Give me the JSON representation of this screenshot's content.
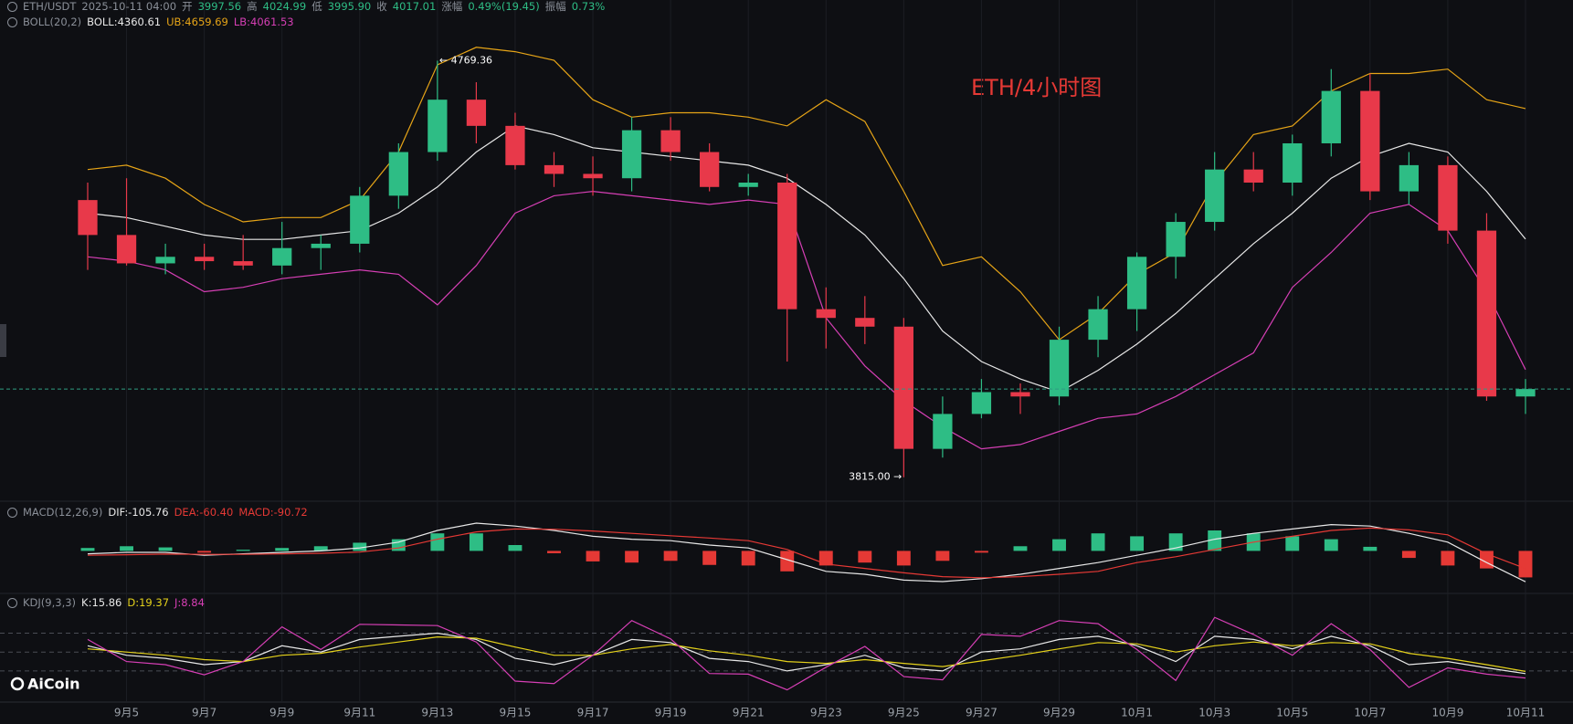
{
  "header": {
    "pair": "ETH/USDT",
    "time": "2025-10-11 04:00",
    "items": [
      {
        "label": "开",
        "value": "3997.56"
      },
      {
        "label": "高",
        "value": "4024.99"
      },
      {
        "label": "低",
        "value": "3995.90"
      },
      {
        "label": "收",
        "value": "4017.01"
      },
      {
        "label": "涨幅",
        "value": "0.49%(19.45)"
      },
      {
        "label": "振幅",
        "value": "0.73%"
      }
    ]
  },
  "logo": "AiCoin",
  "chart_data": [
    {
      "type": "candlestick",
      "title": "ETH/4小时图",
      "name": "BOLL(20,2)",
      "categories": [
        null,
        "9月5",
        null,
        "9月7",
        null,
        "9月9",
        null,
        "9月11",
        null,
        "9月13",
        null,
        "9月15",
        null,
        "9月17",
        null,
        "9月19",
        null,
        "9月21",
        null,
        "9月23",
        null,
        "9月25",
        null,
        "9月27",
        null,
        "9月29",
        null,
        "10月1",
        null,
        "10月3",
        null,
        "10月5",
        null,
        "10月7",
        null,
        "10月9",
        null,
        "10月11"
      ],
      "open": [
        4450,
        4370,
        4305,
        4320,
        4310,
        4300,
        4340,
        4350,
        4460,
        4560,
        4680,
        4620,
        4530,
        4510,
        4500,
        4610,
        4560,
        4480,
        4490,
        4200,
        4180,
        4160,
        3880,
        3960,
        4010,
        4000,
        4130,
        4200,
        4320,
        4400,
        4520,
        4490,
        4580,
        4700,
        4470,
        4530,
        4380,
        4000
      ],
      "high": [
        4490,
        4500,
        4350,
        4350,
        4370,
        4400,
        4370,
        4480,
        4580,
        4769.36,
        4720,
        4650,
        4560,
        4550,
        4640,
        4640,
        4580,
        4510,
        4510,
        4250,
        4230,
        4180,
        4000,
        4040,
        4030,
        4160,
        4230,
        4330,
        4420,
        4560,
        4560,
        4600,
        4750,
        4740,
        4560,
        4550,
        4420,
        4040
      ],
      "low": [
        4290,
        4300,
        4280,
        4290,
        4290,
        4280,
        4290,
        4330,
        4430,
        4540,
        4580,
        4520,
        4480,
        4460,
        4470,
        4540,
        4470,
        4460,
        4080,
        4110,
        4120,
        3815,
        3860,
        3950,
        3960,
        3980,
        4090,
        4150,
        4270,
        4380,
        4470,
        4460,
        4550,
        4450,
        4440,
        4350,
        3990,
        3960
      ],
      "close": [
        4370,
        4305,
        4320,
        4310,
        4300,
        4340,
        4350,
        4460,
        4560,
        4680,
        4620,
        4530,
        4510,
        4500,
        4610,
        4560,
        4480,
        4490,
        4200,
        4180,
        4160,
        3880,
        3960,
        4010,
        4000,
        4130,
        4200,
        4320,
        4400,
        4520,
        4490,
        4580,
        4700,
        4470,
        4530,
        4380,
        4000,
        4017.01
      ],
      "up_color": "#2ebd85",
      "down_color": "#e8394a",
      "high_label": "← 4769.36",
      "low_label": "3815.00 →",
      "series": [
        {
          "name": "BOLL:4360.61",
          "color": "#e8e8e8",
          "values": [
            4420,
            4410,
            4390,
            4370,
            4360,
            4360,
            4370,
            4380,
            4420,
            4480,
            4560,
            4620,
            4600,
            4570,
            4560,
            4550,
            4540,
            4530,
            4500,
            4440,
            4370,
            4270,
            4150,
            4080,
            4040,
            4010,
            4060,
            4120,
            4190,
            4270,
            4350,
            4420,
            4500,
            4550,
            4580,
            4560,
            4470,
            4360.61
          ]
        },
        {
          "name": "UB:4659.69",
          "color": "#e6a417",
          "values": [
            4520,
            4530,
            4500,
            4440,
            4400,
            4410,
            4410,
            4450,
            4560,
            4760,
            4800,
            4790,
            4770,
            4680,
            4640,
            4650,
            4650,
            4640,
            4620,
            4680,
            4630,
            4470,
            4300,
            4320,
            4240,
            4130,
            4190,
            4280,
            4330,
            4490,
            4600,
            4620,
            4700,
            4740,
            4740,
            4750,
            4680,
            4659.69
          ]
        },
        {
          "name": "LB:4061.53",
          "color": "#d63fb5",
          "values": [
            4320,
            4310,
            4290,
            4240,
            4250,
            4270,
            4280,
            4290,
            4280,
            4210,
            4300,
            4420,
            4460,
            4470,
            4460,
            4450,
            4440,
            4450,
            4440,
            4180,
            4070,
            3990,
            3930,
            3880,
            3890,
            3920,
            3950,
            3960,
            4000,
            4050,
            4100,
            4250,
            4330,
            4420,
            4440,
            4380,
            4240,
            4061.53
          ]
        }
      ],
      "ylim": [
        3760,
        4900
      ],
      "grid": true,
      "last_line_color": "#2e9c82"
    },
    {
      "type": "macd",
      "name": "MACD(12,26,9)",
      "series": [
        {
          "name": "DIF:-105.76",
          "color": "#e8e8e8",
          "values": [
            -10,
            -5,
            -5,
            -15,
            -10,
            -5,
            0,
            10,
            30,
            70,
            95,
            85,
            70,
            50,
            40,
            35,
            20,
            10,
            -30,
            -70,
            -80,
            -100,
            -105,
            -95,
            -80,
            -60,
            -40,
            -15,
            10,
            40,
            60,
            75,
            90,
            85,
            60,
            30,
            -40,
            -105.76
          ]
        },
        {
          "name": "DEA:-60.40",
          "color": "#e53935",
          "values": [
            -15,
            -13,
            -11,
            -12,
            -12,
            -10,
            -8,
            -4,
            10,
            40,
            65,
            75,
            74,
            68,
            60,
            52,
            44,
            35,
            5,
            -45,
            -60,
            -75,
            -88,
            -92,
            -88,
            -80,
            -70,
            -40,
            -20,
            5,
            30,
            50,
            70,
            78,
            72,
            55,
            -10,
            -60.4
          ]
        }
      ],
      "histogram": {
        "name": "MACD:-90.72",
        "up_color": "#2ebd85",
        "down_color": "#e53935",
        "values": [
          10,
          16,
          12,
          -6,
          4,
          10,
          16,
          28,
          40,
          60,
          60,
          20,
          -8,
          -36,
          -40,
          -34,
          -48,
          -50,
          -70,
          -50,
          -40,
          -50,
          -34,
          -6,
          16,
          40,
          60,
          50,
          60,
          70,
          60,
          50,
          40,
          14,
          -24,
          -50,
          -60,
          -90.72
        ]
      },
      "ylim": [
        -130,
        120
      ]
    },
    {
      "type": "line",
      "name": "KDJ(9,3,3)",
      "series": [
        {
          "name": "K:15.86",
          "color": "#e8e8e8",
          "values": [
            60,
            45,
            40,
            30,
            35,
            60,
            50,
            70,
            75,
            80,
            70,
            40,
            30,
            45,
            70,
            65,
            40,
            35,
            20,
            30,
            45,
            25,
            20,
            50,
            55,
            70,
            75,
            60,
            35,
            75,
            70,
            55,
            75,
            60,
            30,
            35,
            25,
            15.86
          ]
        },
        {
          "name": "D:19.37",
          "color": "#e5d21b",
          "values": [
            55,
            50,
            45,
            38,
            35,
            45,
            48,
            58,
            66,
            74,
            72,
            58,
            45,
            45,
            55,
            62,
            52,
            45,
            35,
            32,
            38,
            32,
            27,
            36,
            45,
            55,
            65,
            63,
            50,
            60,
            66,
            60,
            65,
            63,
            48,
            40,
            30,
            19.37
          ]
        },
        {
          "name": "J:8.84",
          "color": "#d63fb5",
          "values": [
            70,
            35,
            30,
            14,
            35,
            90,
            54,
            94,
            93,
            92,
            66,
            4,
            0,
            45,
            100,
            71,
            16,
            15,
            -10,
            26,
            59,
            11,
            6,
            78,
            75,
            100,
            95,
            54,
            5,
            105,
            78,
            45,
            95,
            54,
            -6,
            25,
            15,
            8.84
          ]
        }
      ],
      "ref_lines": [
        20,
        50,
        80
      ],
      "ylim": [
        -25,
        114
      ]
    }
  ]
}
